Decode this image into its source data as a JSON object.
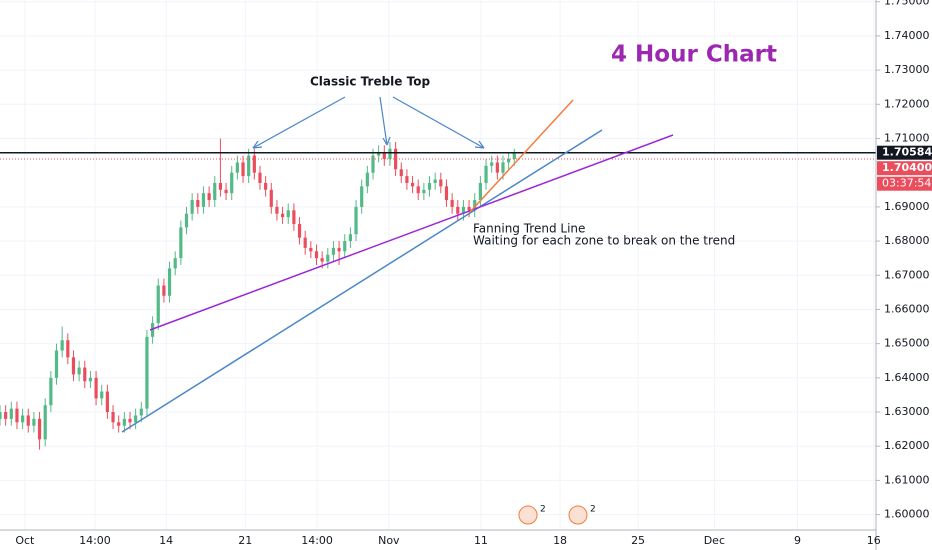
{
  "chart_data": {
    "type": "candlestick",
    "title": "4 Hour Chart",
    "annotations": [
      "Classic Treble Top",
      "Fanning Trend Line",
      "Waiting for each zone to break on the trend"
    ],
    "open": [
      1.628,
      1.63,
      1.628,
      1.631,
      1.627,
      1.629,
      1.626,
      1.628,
      1.622,
      1.632,
      1.64,
      1.648,
      1.651,
      1.646,
      1.641,
      1.643,
      1.639,
      1.64,
      1.634,
      1.636,
      1.63,
      1.627,
      1.626,
      1.628,
      1.627,
      1.629,
      1.631,
      1.652,
      1.656,
      1.667,
      1.664,
      1.672,
      1.675,
      1.684,
      1.688,
      1.692,
      1.69,
      1.694,
      1.692,
      1.697,
      1.695,
      1.694,
      1.7,
      1.703,
      1.699,
      1.705,
      1.7,
      1.697,
      1.695,
      1.69,
      1.688,
      1.687,
      1.689,
      1.685,
      1.681,
      1.678,
      1.677,
      1.675,
      1.674,
      1.676,
      1.678,
      1.677,
      1.68,
      1.682,
      1.69,
      1.696,
      1.7,
      1.705,
      1.706,
      1.704,
      1.707,
      1.701,
      1.699,
      1.697,
      1.696,
      1.694,
      1.695,
      1.697,
      1.698,
      1.696,
      1.692,
      1.69,
      1.688,
      1.69,
      1.689,
      1.692,
      1.697,
      1.702,
      1.703,
      1.7,
      1.703,
      1.704
    ],
    "high": [
      1.632,
      1.632,
      1.633,
      1.633,
      1.631,
      1.631,
      1.63,
      1.63,
      1.634,
      1.642,
      1.65,
      1.655,
      1.653,
      1.648,
      1.645,
      1.645,
      1.642,
      1.642,
      1.638,
      1.638,
      1.632,
      1.629,
      1.63,
      1.63,
      1.631,
      1.633,
      1.654,
      1.658,
      1.669,
      1.669,
      1.674,
      1.677,
      1.686,
      1.69,
      1.694,
      1.694,
      1.696,
      1.696,
      1.699,
      1.71,
      1.697,
      1.702,
      1.705,
      1.705,
      1.707,
      1.707,
      1.702,
      1.699,
      1.697,
      1.692,
      1.69,
      1.691,
      1.691,
      1.687,
      1.683,
      1.68,
      1.679,
      1.677,
      1.678,
      1.68,
      1.68,
      1.682,
      1.684,
      1.692,
      1.698,
      1.702,
      1.707,
      1.708,
      1.708,
      1.709,
      1.709,
      1.703,
      1.701,
      1.699,
      1.698,
      1.697,
      1.699,
      1.7,
      1.7,
      1.698,
      1.694,
      1.692,
      1.692,
      1.692,
      1.694,
      1.699,
      1.704,
      1.705,
      1.705,
      1.705,
      1.706,
      1.707
    ],
    "low": [
      1.626,
      1.626,
      1.626,
      1.625,
      1.625,
      1.624,
      1.624,
      1.619,
      1.62,
      1.63,
      1.638,
      1.646,
      1.644,
      1.639,
      1.639,
      1.637,
      1.637,
      1.632,
      1.632,
      1.628,
      1.625,
      1.624,
      1.624,
      1.625,
      1.625,
      1.627,
      1.629,
      1.65,
      1.654,
      1.662,
      1.662,
      1.67,
      1.673,
      1.682,
      1.686,
      1.688,
      1.688,
      1.69,
      1.69,
      1.693,
      1.692,
      1.692,
      1.698,
      1.697,
      1.697,
      1.698,
      1.695,
      1.693,
      1.688,
      1.686,
      1.685,
      1.685,
      1.683,
      1.679,
      1.676,
      1.675,
      1.673,
      1.672,
      1.672,
      1.674,
      1.673,
      1.675,
      1.678,
      1.68,
      1.688,
      1.694,
      1.698,
      1.703,
      1.702,
      1.702,
      1.699,
      1.697,
      1.695,
      1.694,
      1.692,
      1.692,
      1.693,
      1.695,
      1.694,
      1.69,
      1.688,
      1.686,
      1.686,
      1.687,
      1.687,
      1.69,
      1.695,
      1.7,
      1.698,
      1.698,
      1.701,
      1.702
    ],
    "close": [
      1.63,
      1.628,
      1.631,
      1.627,
      1.629,
      1.626,
      1.628,
      1.622,
      1.632,
      1.64,
      1.648,
      1.651,
      1.646,
      1.641,
      1.643,
      1.639,
      1.64,
      1.634,
      1.636,
      1.63,
      1.627,
      1.626,
      1.628,
      1.627,
      1.629,
      1.631,
      1.652,
      1.656,
      1.667,
      1.664,
      1.672,
      1.675,
      1.684,
      1.688,
      1.692,
      1.69,
      1.694,
      1.692,
      1.697,
      1.695,
      1.694,
      1.7,
      1.703,
      1.699,
      1.705,
      1.7,
      1.697,
      1.695,
      1.69,
      1.688,
      1.687,
      1.689,
      1.685,
      1.681,
      1.678,
      1.677,
      1.675,
      1.674,
      1.676,
      1.678,
      1.677,
      1.68,
      1.682,
      1.69,
      1.696,
      1.7,
      1.705,
      1.706,
      1.704,
      1.707,
      1.701,
      1.699,
      1.697,
      1.696,
      1.694,
      1.695,
      1.697,
      1.698,
      1.696,
      1.692,
      1.69,
      1.688,
      1.69,
      1.689,
      1.692,
      1.697,
      1.702,
      1.703,
      1.7,
      1.703,
      1.704,
      1.7058
    ],
    "up_color": "#53b987",
    "down_color": "#eb4d5c",
    "xlim": [
      0,
      155
    ],
    "xticks": [
      {
        "value": 4.4,
        "label": "Oct"
      },
      {
        "value": 16.8,
        "label": "14:00"
      },
      {
        "value": 29.4,
        "label": "14"
      },
      {
        "value": 43.4,
        "label": "21"
      },
      {
        "value": 56.1,
        "label": "14:00"
      },
      {
        "value": 68.8,
        "label": "Nov"
      },
      {
        "value": 85.1,
        "label": "11"
      },
      {
        "value": 99.1,
        "label": "18"
      },
      {
        "value": 112.9,
        "label": "25"
      },
      {
        "value": 126.4,
        "label": "Dec"
      },
      {
        "value": 141.1,
        "label": "9"
      },
      {
        "value": 154.6,
        "label": "16"
      }
    ],
    "ylim": [
      1.5955,
      1.7505
    ],
    "yticks": [
      {
        "value": 1.6,
        "label": "1.60000"
      },
      {
        "value": 1.61,
        "label": "1.61000"
      },
      {
        "value": 1.62,
        "label": "1.62000"
      },
      {
        "value": 1.63,
        "label": "1.63000"
      },
      {
        "value": 1.64,
        "label": "1.64000"
      },
      {
        "value": 1.65,
        "label": "1.65000"
      },
      {
        "value": 1.66,
        "label": "1.66000"
      },
      {
        "value": 1.67,
        "label": "1.67000"
      },
      {
        "value": 1.68,
        "label": "1.68000"
      },
      {
        "value": 1.69,
        "label": "1.69000"
      },
      {
        "value": 1.71,
        "label": "1.71000"
      },
      {
        "value": 1.72,
        "label": "1.72000"
      },
      {
        "value": 1.73,
        "label": "1.73000"
      },
      {
        "value": 1.74,
        "label": "1.74000"
      },
      {
        "value": 1.75,
        "label": "1.75000"
      }
    ],
    "grid": true,
    "price_lines": [
      {
        "value": 1.70584,
        "label": "1.70584",
        "color": "#131722",
        "style": "solid"
      },
      {
        "value": 1.704,
        "label": "1.70400",
        "color": "#eb4d5c",
        "style": "dotted"
      }
    ],
    "countdown": "03:37:54",
    "event_badges": [
      "2",
      "2"
    ]
  }
}
